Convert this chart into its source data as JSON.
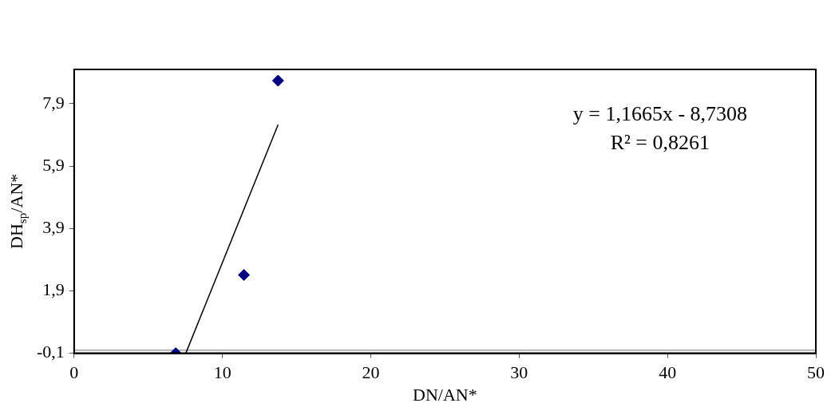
{
  "chart_data": {
    "type": "scatter",
    "xlabel": "DN/AN*",
    "ylabel": "DH$_{sp}$/AN*",
    "series": [
      {
        "color": "#000080",
        "x": [
          6.85,
          11.45,
          13.75
        ],
        "values": [
          -0.1,
          2.41,
          8.64
        ]
      },
      {
        "type": "line",
        "color": "#000000",
        "x": [
          7.53,
          13.75
        ],
        "values": [
          -0.1,
          7.23
        ],
        "marker": "none"
      }
    ],
    "marker": "diamond",
    "xlim": [
      0,
      50
    ],
    "xticks": [
      0,
      10,
      20,
      30,
      40,
      50
    ],
    "ylim": [
      -0.1,
      9
    ],
    "yticks": [
      {
        "value": -0.1,
        "label": "-0,1"
      },
      {
        "value": 1.9,
        "label": "1,9"
      },
      {
        "value": 3.9,
        "label": "3,9"
      },
      {
        "value": 5.9,
        "label": "5,9"
      },
      {
        "value": 7.9,
        "label": "7,9"
      }
    ],
    "ref_lines": [
      {
        "axis": "y",
        "value": 0,
        "color": "#a0a0a0"
      }
    ],
    "annotations": [
      "y = 1,1665x - 8,7308",
      "R² = 0,8261"
    ],
    "grid": false,
    "legend": false
  }
}
